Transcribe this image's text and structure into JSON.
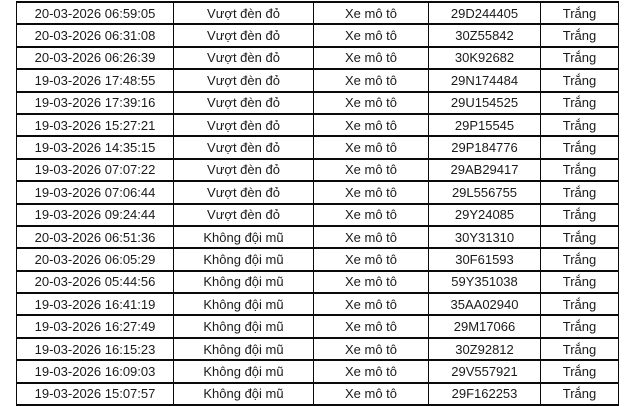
{
  "colors": {
    "background": "#ffffff",
    "border": "#0a0a0a",
    "text": "#1a1a1a"
  },
  "table": {
    "column_keys": [
      "timestamp",
      "violation",
      "vehicle_type",
      "plate",
      "status"
    ],
    "rows": [
      [
        "20-03-2026 06:59:05",
        "Vượt đèn đỏ",
        "Xe mô tô",
        "29D244405",
        "Trắng"
      ],
      [
        "20-03-2026 06:31:08",
        "Vượt đèn đỏ",
        "Xe mô tô",
        "30Z55842",
        "Trắng"
      ],
      [
        "20-03-2026 06:26:39",
        "Vượt đèn đỏ",
        "Xe mô tô",
        "30K92682",
        "Trắng"
      ],
      [
        "19-03-2026 17:48:55",
        "Vượt đèn đỏ",
        "Xe mô tô",
        "29N174484",
        "Trắng"
      ],
      [
        "19-03-2026 17:39:16",
        "Vượt đèn đỏ",
        "Xe mô tô",
        "29U154525",
        "Trắng"
      ],
      [
        "19-03-2026 15:27:21",
        "Vượt đèn đỏ",
        "Xe mô tô",
        "29P15545",
        "Trắng"
      ],
      [
        "19-03-2026 14:35:15",
        "Vượt đèn đỏ",
        "Xe mô tô",
        "29P184776",
        "Trắng"
      ],
      [
        "19-03-2026 07:07:22",
        "Vượt đèn đỏ",
        "Xe mô tô",
        "29AB29417",
        "Trắng"
      ],
      [
        "19-03-2026 07:06:44",
        "Vượt đèn đỏ",
        "Xe mô tô",
        "29L556755",
        "Trắng"
      ],
      [
        "19-03-2026 09:24:44",
        "Vượt đèn đỏ",
        "Xe mô tô",
        "29Y24085",
        "Trắng"
      ],
      [
        "20-03-2026 06:51:36",
        "Không đội mũ",
        "Xe mô tô",
        "30Y31310",
        "Trắng"
      ],
      [
        "20-03-2026 06:05:29",
        "Không đội mũ",
        "Xe mô tô",
        "30F61593",
        "Trắng"
      ],
      [
        "20-03-2026 05:44:56",
        "Không đội mũ",
        "Xe mô tô",
        "59Y351038",
        "Trắng"
      ],
      [
        "19-03-2026 16:41:19",
        "Không đội mũ",
        "Xe mô tô",
        "35AA02940",
        "Trắng"
      ],
      [
        "19-03-2026 16:27:49",
        "Không đội mũ",
        "Xe mô tô",
        "29M17066",
        "Trắng"
      ],
      [
        "19-03-2026 16:15:23",
        "Không đội mũ",
        "Xe mô tô",
        "30Z92812",
        "Trắng"
      ],
      [
        "19-03-2026 16:09:03",
        "Không đội mũ",
        "Xe mô tô",
        "29V557921",
        "Trắng"
      ],
      [
        "19-03-2026 15:07:57",
        "Không đội mũ",
        "Xe mô tô",
        "29F162253",
        "Trắng"
      ]
    ]
  }
}
